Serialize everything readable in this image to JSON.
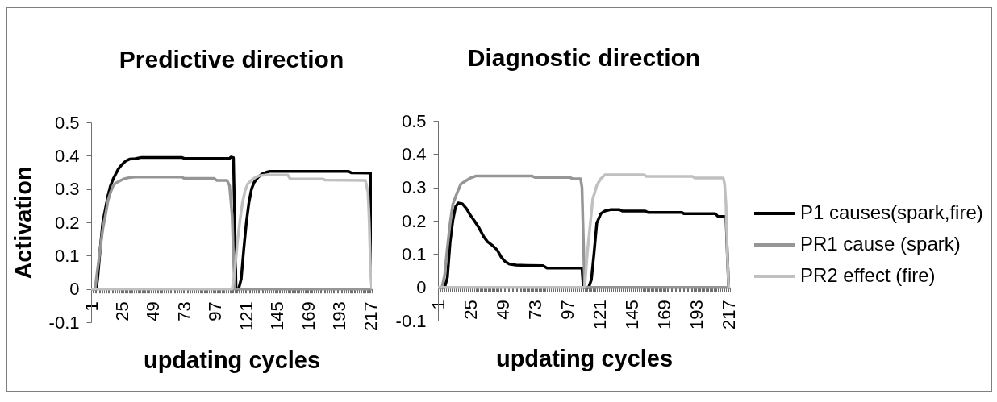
{
  "chart_data": [
    {
      "type": "line",
      "title": "Predictive direction",
      "xlabel": "updating cycles",
      "ylabel": "Activation",
      "xlim": [
        1,
        218
      ],
      "ylim": [
        -0.1,
        0.5
      ],
      "xticks": [
        1,
        {
          "value": 2,
          "label": null
        },
        {
          "value": 3,
          "label": null
        },
        {
          "value": 4,
          "label": null
        },
        {
          "value": 5,
          "label": null
        },
        {
          "value": 6,
          "label": null
        },
        {
          "value": 7,
          "label": null
        },
        {
          "value": 8,
          "label": null
        },
        {
          "value": 9,
          "label": null
        },
        {
          "value": 10,
          "label": null
        },
        {
          "value": 11,
          "label": null
        },
        {
          "value": 12,
          "label": null
        },
        {
          "value": 13,
          "label": null
        },
        {
          "value": 14,
          "label": null
        },
        {
          "value": 15,
          "label": null
        },
        {
          "value": 16,
          "label": null
        },
        {
          "value": 17,
          "label": null
        },
        {
          "value": 18,
          "label": null
        },
        {
          "value": 19,
          "label": null
        },
        {
          "value": 20,
          "label": null
        },
        {
          "value": 21,
          "label": null
        },
        {
          "value": 22,
          "label": null
        },
        {
          "value": 23,
          "label": null
        },
        {
          "value": 24,
          "label": null
        },
        25,
        {
          "value": 26,
          "label": null
        },
        {
          "value": 27,
          "label": null
        },
        {
          "value": 28,
          "label": null
        },
        {
          "value": 29,
          "label": null
        },
        {
          "value": 30,
          "label": null
        },
        {
          "value": 31,
          "label": null
        },
        {
          "value": 32,
          "label": null
        },
        {
          "value": 33,
          "label": null
        },
        {
          "value": 34,
          "label": null
        },
        {
          "value": 35,
          "label": null
        },
        {
          "value": 36,
          "label": null
        },
        {
          "value": 37,
          "label": null
        },
        {
          "value": 38,
          "label": null
        },
        {
          "value": 39,
          "label": null
        },
        {
          "value": 40,
          "label": null
        },
        {
          "value": 41,
          "label": null
        },
        {
          "value": 42,
          "label": null
        },
        {
          "value": 43,
          "label": null
        },
        {
          "value": 44,
          "label": null
        },
        {
          "value": 45,
          "label": null
        },
        {
          "value": 46,
          "label": null
        },
        {
          "value": 47,
          "label": null
        },
        {
          "value": 48,
          "label": null
        },
        49,
        {
          "value": 50,
          "label": null
        },
        {
          "value": 51,
          "label": null
        },
        {
          "value": 52,
          "label": null
        },
        {
          "value": 53,
          "label": null
        },
        {
          "value": 54,
          "label": null
        },
        {
          "value": 55,
          "label": null
        },
        {
          "value": 56,
          "label": null
        },
        {
          "value": 57,
          "label": null
        },
        {
          "value": 58,
          "label": null
        },
        {
          "value": 59,
          "label": null
        },
        {
          "value": 60,
          "label": null
        },
        {
          "value": 61,
          "label": null
        },
        {
          "value": 62,
          "label": null
        },
        {
          "value": 63,
          "label": null
        },
        {
          "value": 64,
          "label": null
        },
        {
          "value": 65,
          "label": null
        },
        {
          "value": 66,
          "label": null
        },
        {
          "value": 67,
          "label": null
        },
        {
          "value": 68,
          "label": null
        },
        {
          "value": 69,
          "label": null
        },
        {
          "value": 70,
          "label": null
        },
        {
          "value": 71,
          "label": null
        },
        {
          "value": 72,
          "label": null
        },
        73,
        {
          "value": 74,
          "label": null
        },
        {
          "value": 75,
          "label": null
        },
        {
          "value": 76,
          "label": null
        },
        {
          "value": 77,
          "label": null
        },
        {
          "value": 78,
          "label": null
        },
        {
          "value": 79,
          "label": null
        },
        {
          "value": 80,
          "label": null
        },
        {
          "value": 81,
          "label": null
        },
        {
          "value": 82,
          "label": null
        },
        {
          "value": 83,
          "label": null
        },
        {
          "value": 84,
          "label": null
        },
        {
          "value": 85,
          "label": null
        },
        {
          "value": 86,
          "label": null
        },
        {
          "value": 87,
          "label": null
        },
        {
          "value": 88,
          "label": null
        },
        {
          "value": 89,
          "label": null
        },
        {
          "value": 90,
          "label": null
        },
        {
          "value": 91,
          "label": null
        },
        {
          "value": 92,
          "label": null
        },
        {
          "value": 93,
          "label": null
        },
        {
          "value": 94,
          "label": null
        },
        {
          "value": 95,
          "label": null
        },
        {
          "value": 96,
          "label": null
        },
        97,
        {
          "value": 98,
          "label": null
        },
        {
          "value": 99,
          "label": null
        },
        {
          "value": 100,
          "label": null
        },
        {
          "value": 101,
          "label": null
        },
        {
          "value": 102,
          "label": null
        },
        {
          "value": 103,
          "label": null
        },
        {
          "value": 104,
          "label": null
        },
        {
          "value": 105,
          "label": null
        },
        {
          "value": 106,
          "label": null
        },
        {
          "value": 107,
          "label": null
        },
        {
          "value": 108,
          "label": null
        },
        {
          "value": 109,
          "label": null
        },
        {
          "value": 110,
          "label": null
        },
        {
          "value": 111,
          "label": null
        },
        {
          "value": 112,
          "label": null
        },
        {
          "value": 113,
          "label": null
        },
        {
          "value": 114,
          "label": null
        },
        {
          "value": 115,
          "label": null
        },
        {
          "value": 116,
          "label": null
        },
        {
          "value": 117,
          "label": null
        },
        {
          "value": 118,
          "label": null
        },
        {
          "value": 119,
          "label": null
        },
        {
          "value": 120,
          "label": null
        },
        121,
        {
          "value": 122,
          "label": null
        },
        {
          "value": 123,
          "label": null
        },
        {
          "value": 124,
          "label": null
        },
        {
          "value": 125,
          "label": null
        },
        {
          "value": 126,
          "label": null
        },
        {
          "value": 127,
          "label": null
        },
        {
          "value": 128,
          "label": null
        },
        {
          "value": 129,
          "label": null
        },
        {
          "value": 130,
          "label": null
        },
        {
          "value": 131,
          "label": null
        },
        {
          "value": 132,
          "label": null
        },
        {
          "value": 133,
          "label": null
        },
        {
          "value": 134,
          "label": null
        },
        {
          "value": 135,
          "label": null
        },
        {
          "value": 136,
          "label": null
        },
        {
          "value": 137,
          "label": null
        },
        {
          "value": 138,
          "label": null
        },
        {
          "value": 139,
          "label": null
        },
        {
          "value": 140,
          "label": null
        },
        {
          "value": 141,
          "label": null
        },
        {
          "value": 142,
          "label": null
        },
        {
          "value": 143,
          "label": null
        },
        {
          "value": 144,
          "label": null
        },
        145,
        {
          "value": 146,
          "label": null
        },
        {
          "value": 147,
          "label": null
        },
        {
          "value": 148,
          "label": null
        },
        {
          "value": 149,
          "label": null
        },
        {
          "value": 150,
          "label": null
        },
        {
          "value": 151,
          "label": null
        },
        {
          "value": 152,
          "label": null
        },
        {
          "value": 153,
          "label": null
        },
        {
          "value": 154,
          "label": null
        },
        {
          "value": 155,
          "label": null
        },
        {
          "value": 156,
          "label": null
        },
        {
          "value": 157,
          "label": null
        },
        {
          "value": 158,
          "label": null
        },
        {
          "value": 159,
          "label": null
        },
        {
          "value": 160,
          "label": null
        },
        {
          "value": 161,
          "label": null
        },
        {
          "value": 162,
          "label": null
        },
        {
          "value": 163,
          "label": null
        },
        {
          "value": 164,
          "label": null
        },
        {
          "value": 165,
          "label": null
        },
        {
          "value": 166,
          "label": null
        },
        {
          "value": 167,
          "label": null
        },
        {
          "value": 168,
          "label": null
        },
        169,
        {
          "value": 170,
          "label": null
        },
        {
          "value": 171,
          "label": null
        },
        {
          "value": 172,
          "label": null
        },
        {
          "value": 173,
          "label": null
        },
        {
          "value": 174,
          "label": null
        },
        {
          "value": 175,
          "label": null
        },
        {
          "value": 176,
          "label": null
        },
        {
          "value": 177,
          "label": null
        },
        {
          "value": 178,
          "label": null
        },
        {
          "value": 179,
          "label": null
        },
        {
          "value": 180,
          "label": null
        },
        {
          "value": 181,
          "label": null
        },
        {
          "value": 182,
          "label": null
        },
        {
          "value": 183,
          "label": null
        },
        {
          "value": 184,
          "label": null
        },
        {
          "value": 185,
          "label": null
        },
        {
          "value": 186,
          "label": null
        },
        {
          "value": 187,
          "label": null
        },
        {
          "value": 188,
          "label": null
        },
        {
          "value": 189,
          "label": null
        },
        {
          "value": 190,
          "label": null
        },
        {
          "value": 191,
          "label": null
        },
        {
          "value": 192,
          "label": null
        },
        193,
        {
          "value": 194,
          "label": null
        },
        {
          "value": 195,
          "label": null
        },
        {
          "value": 196,
          "label": null
        },
        {
          "value": 197,
          "label": null
        },
        {
          "value": 198,
          "label": null
        },
        {
          "value": 199,
          "label": null
        },
        {
          "value": 200,
          "label": null
        },
        {
          "value": 201,
          "label": null
        },
        {
          "value": 202,
          "label": null
        },
        {
          "value": 203,
          "label": null
        },
        {
          "value": 204,
          "label": null
        },
        {
          "value": 205,
          "label": null
        },
        {
          "value": 206,
          "label": null
        },
        {
          "value": 207,
          "label": null
        },
        {
          "value": 208,
          "label": null
        },
        {
          "value": 209,
          "label": null
        },
        {
          "value": 210,
          "label": null
        },
        {
          "value": 211,
          "label": null
        },
        {
          "value": 212,
          "label": null
        },
        {
          "value": 213,
          "label": null
        },
        {
          "value": 214,
          "label": null
        },
        {
          "value": 215,
          "label": null
        },
        {
          "value": 216,
          "label": null
        },
        217,
        {
          "value": 218,
          "label": null
        }
      ],
      "yticks": [
        -0.1,
        0,
        0.1,
        0.2,
        0.3,
        0.4,
        0.5
      ],
      "series": [
        {
          "color": "#000000",
          "x": [
            1,
            5,
            6,
            8,
            10,
            12,
            14,
            16,
            18,
            20,
            22,
            24,
            26,
            28,
            31,
            35,
            40,
            71,
            73,
            108,
            109,
            111,
            112,
            113,
            115,
            117,
            119,
            121,
            123,
            125,
            127,
            130,
            133,
            136,
            139,
            200,
            202,
            217,
            218
          ],
          "values": [
            0,
            0,
            0.03,
            0.12,
            0.2,
            0.24,
            0.28,
            0.31,
            0.33,
            0.345,
            0.36,
            0.37,
            0.378,
            0.385,
            0.39,
            0.391,
            0.395,
            0.395,
            0.392,
            0.392,
            0.396,
            0.394,
            0.2,
            0,
            0,
            0.03,
            0.12,
            0.2,
            0.26,
            0.3,
            0.32,
            0.335,
            0.345,
            0.35,
            0.353,
            0.353,
            0.349,
            0.348,
            0
          ]
        },
        {
          "color": "#969696",
          "x": [
            1,
            4,
            6,
            8,
            10,
            12,
            14,
            16,
            18,
            20,
            23,
            26,
            30,
            35,
            71,
            73,
            96,
            98,
            106,
            108,
            110,
            111,
            112,
            218
          ],
          "values": [
            0,
            0,
            0.06,
            0.12,
            0.18,
            0.22,
            0.265,
            0.29,
            0.31,
            0.318,
            0.324,
            0.33,
            0.334,
            0.336,
            0.336,
            0.332,
            0.332,
            0.326,
            0.326,
            0.31,
            0.22,
            0.1,
            0,
            0
          ]
        },
        {
          "color": "#c0c0c0",
          "x": [
            1,
            110,
            112,
            114,
            116,
            118,
            120,
            122,
            125,
            128,
            131,
            136,
            153,
            155,
            180,
            182,
            213,
            215,
            216,
            217,
            218
          ],
          "values": [
            0,
            0,
            0.05,
            0.14,
            0.205,
            0.26,
            0.295,
            0.315,
            0.327,
            0.335,
            0.34,
            0.342,
            0.342,
            0.33,
            0.33,
            0.327,
            0.326,
            0.29,
            0.2,
            0.05,
            0
          ]
        }
      ]
    },
    {
      "type": "line",
      "title": "Diagnostic direction",
      "xlabel": "updating cycles",
      "xlim": [
        1,
        218
      ],
      "ylim": [
        -0.1,
        0.5
      ],
      "legend": "right",
      "xticks": [
        1,
        {
          "value": 2,
          "label": null
        },
        {
          "value": 3,
          "label": null
        },
        {
          "value": 4,
          "label": null
        },
        {
          "value": 5,
          "label": null
        },
        {
          "value": 6,
          "label": null
        },
        {
          "value": 7,
          "label": null
        },
        {
          "value": 8,
          "label": null
        },
        {
          "value": 9,
          "label": null
        },
        {
          "value": 10,
          "label": null
        },
        {
          "value": 11,
          "label": null
        },
        {
          "value": 12,
          "label": null
        },
        {
          "value": 13,
          "label": null
        },
        {
          "value": 14,
          "label": null
        },
        {
          "value": 15,
          "label": null
        },
        {
          "value": 16,
          "label": null
        },
        {
          "value": 17,
          "label": null
        },
        {
          "value": 18,
          "label": null
        },
        {
          "value": 19,
          "label": null
        },
        {
          "value": 20,
          "label": null
        },
        {
          "value": 21,
          "label": null
        },
        {
          "value": 22,
          "label": null
        },
        {
          "value": 23,
          "label": null
        },
        {
          "value": 24,
          "label": null
        },
        25,
        {
          "value": 26,
          "label": null
        },
        {
          "value": 27,
          "label": null
        },
        {
          "value": 28,
          "label": null
        },
        {
          "value": 29,
          "label": null
        },
        {
          "value": 30,
          "label": null
        },
        {
          "value": 31,
          "label": null
        },
        {
          "value": 32,
          "label": null
        },
        {
          "value": 33,
          "label": null
        },
        {
          "value": 34,
          "label": null
        },
        {
          "value": 35,
          "label": null
        },
        {
          "value": 36,
          "label": null
        },
        {
          "value": 37,
          "label": null
        },
        {
          "value": 38,
          "label": null
        },
        {
          "value": 39,
          "label": null
        },
        {
          "value": 40,
          "label": null
        },
        {
          "value": 41,
          "label": null
        },
        {
          "value": 42,
          "label": null
        },
        {
          "value": 43,
          "label": null
        },
        {
          "value": 44,
          "label": null
        },
        {
          "value": 45,
          "label": null
        },
        {
          "value": 46,
          "label": null
        },
        {
          "value": 47,
          "label": null
        },
        {
          "value": 48,
          "label": null
        },
        49,
        {
          "value": 50,
          "label": null
        },
        {
          "value": 51,
          "label": null
        },
        {
          "value": 52,
          "label": null
        },
        {
          "value": 53,
          "label": null
        },
        {
          "value": 54,
          "label": null
        },
        {
          "value": 55,
          "label": null
        },
        {
          "value": 56,
          "label": null
        },
        {
          "value": 57,
          "label": null
        },
        {
          "value": 58,
          "label": null
        },
        {
          "value": 59,
          "label": null
        },
        {
          "value": 60,
          "label": null
        },
        {
          "value": 61,
          "label": null
        },
        {
          "value": 62,
          "label": null
        },
        {
          "value": 63,
          "label": null
        },
        {
          "value": 64,
          "label": null
        },
        {
          "value": 65,
          "label": null
        },
        {
          "value": 66,
          "label": null
        },
        {
          "value": 67,
          "label": null
        },
        {
          "value": 68,
          "label": null
        },
        {
          "value": 69,
          "label": null
        },
        {
          "value": 70,
          "label": null
        },
        {
          "value": 71,
          "label": null
        },
        {
          "value": 72,
          "label": null
        },
        73,
        {
          "value": 74,
          "label": null
        },
        {
          "value": 75,
          "label": null
        },
        {
          "value": 76,
          "label": null
        },
        {
          "value": 77,
          "label": null
        },
        {
          "value": 78,
          "label": null
        },
        {
          "value": 79,
          "label": null
        },
        {
          "value": 80,
          "label": null
        },
        {
          "value": 81,
          "label": null
        },
        {
          "value": 82,
          "label": null
        },
        {
          "value": 83,
          "label": null
        },
        {
          "value": 84,
          "label": null
        },
        {
          "value": 85,
          "label": null
        },
        {
          "value": 86,
          "label": null
        },
        {
          "value": 87,
          "label": null
        },
        {
          "value": 88,
          "label": null
        },
        {
          "value": 89,
          "label": null
        },
        {
          "value": 90,
          "label": null
        },
        {
          "value": 91,
          "label": null
        },
        {
          "value": 92,
          "label": null
        },
        {
          "value": 93,
          "label": null
        },
        {
          "value": 94,
          "label": null
        },
        {
          "value": 95,
          "label": null
        },
        {
          "value": 96,
          "label": null
        },
        97,
        {
          "value": 98,
          "label": null
        },
        {
          "value": 99,
          "label": null
        },
        {
          "value": 100,
          "label": null
        },
        {
          "value": 101,
          "label": null
        },
        {
          "value": 102,
          "label": null
        },
        {
          "value": 103,
          "label": null
        },
        {
          "value": 104,
          "label": null
        },
        {
          "value": 105,
          "label": null
        },
        {
          "value": 106,
          "label": null
        },
        {
          "value": 107,
          "label": null
        },
        {
          "value": 108,
          "label": null
        },
        {
          "value": 109,
          "label": null
        },
        {
          "value": 110,
          "label": null
        },
        {
          "value": 111,
          "label": null
        },
        {
          "value": 112,
          "label": null
        },
        {
          "value": 113,
          "label": null
        },
        {
          "value": 114,
          "label": null
        },
        {
          "value": 115,
          "label": null
        },
        {
          "value": 116,
          "label": null
        },
        {
          "value": 117,
          "label": null
        },
        {
          "value": 118,
          "label": null
        },
        {
          "value": 119,
          "label": null
        },
        {
          "value": 120,
          "label": null
        },
        121,
        {
          "value": 122,
          "label": null
        },
        {
          "value": 123,
          "label": null
        },
        {
          "value": 124,
          "label": null
        },
        {
          "value": 125,
          "label": null
        },
        {
          "value": 126,
          "label": null
        },
        {
          "value": 127,
          "label": null
        },
        {
          "value": 128,
          "label": null
        },
        {
          "value": 129,
          "label": null
        },
        {
          "value": 130,
          "label": null
        },
        {
          "value": 131,
          "label": null
        },
        {
          "value": 132,
          "label": null
        },
        {
          "value": 133,
          "label": null
        },
        {
          "value": 134,
          "label": null
        },
        {
          "value": 135,
          "label": null
        },
        {
          "value": 136,
          "label": null
        },
        {
          "value": 137,
          "label": null
        },
        {
          "value": 138,
          "label": null
        },
        {
          "value": 139,
          "label": null
        },
        {
          "value": 140,
          "label": null
        },
        {
          "value": 141,
          "label": null
        },
        {
          "value": 142,
          "label": null
        },
        {
          "value": 143,
          "label": null
        },
        {
          "value": 144,
          "label": null
        },
        145,
        {
          "value": 146,
          "label": null
        },
        {
          "value": 147,
          "label": null
        },
        {
          "value": 148,
          "label": null
        },
        {
          "value": 149,
          "label": null
        },
        {
          "value": 150,
          "label": null
        },
        {
          "value": 151,
          "label": null
        },
        {
          "value": 152,
          "label": null
        },
        {
          "value": 153,
          "label": null
        },
        {
          "value": 154,
          "label": null
        },
        {
          "value": 155,
          "label": null
        },
        {
          "value": 156,
          "label": null
        },
        {
          "value": 157,
          "label": null
        },
        {
          "value": 158,
          "label": null
        },
        {
          "value": 159,
          "label": null
        },
        {
          "value": 160,
          "label": null
        },
        {
          "value": 161,
          "label": null
        },
        {
          "value": 162,
          "label": null
        },
        {
          "value": 163,
          "label": null
        },
        {
          "value": 164,
          "label": null
        },
        {
          "value": 165,
          "label": null
        },
        {
          "value": 166,
          "label": null
        },
        {
          "value": 167,
          "label": null
        },
        {
          "value": 168,
          "label": null
        },
        169,
        {
          "value": 170,
          "label": null
        },
        {
          "value": 171,
          "label": null
        },
        {
          "value": 172,
          "label": null
        },
        {
          "value": 173,
          "label": null
        },
        {
          "value": 174,
          "label": null
        },
        {
          "value": 175,
          "label": null
        },
        {
          "value": 176,
          "label": null
        },
        {
          "value": 177,
          "label": null
        },
        {
          "value": 178,
          "label": null
        },
        {
          "value": 179,
          "label": null
        },
        {
          "value": 180,
          "label": null
        },
        {
          "value": 181,
          "label": null
        },
        {
          "value": 182,
          "label": null
        },
        {
          "value": 183,
          "label": null
        },
        {
          "value": 184,
          "label": null
        },
        {
          "value": 185,
          "label": null
        },
        {
          "value": 186,
          "label": null
        },
        {
          "value": 187,
          "label": null
        },
        {
          "value": 188,
          "label": null
        },
        {
          "value": 189,
          "label": null
        },
        {
          "value": 190,
          "label": null
        },
        {
          "value": 191,
          "label": null
        },
        {
          "value": 192,
          "label": null
        },
        193,
        {
          "value": 194,
          "label": null
        },
        {
          "value": 195,
          "label": null
        },
        {
          "value": 196,
          "label": null
        },
        {
          "value": 197,
          "label": null
        },
        {
          "value": 198,
          "label": null
        },
        {
          "value": 199,
          "label": null
        },
        {
          "value": 200,
          "label": null
        },
        {
          "value": 201,
          "label": null
        },
        {
          "value": 202,
          "label": null
        },
        {
          "value": 203,
          "label": null
        },
        {
          "value": 204,
          "label": null
        },
        {
          "value": 205,
          "label": null
        },
        {
          "value": 206,
          "label": null
        },
        {
          "value": 207,
          "label": null
        },
        {
          "value": 208,
          "label": null
        },
        {
          "value": 209,
          "label": null
        },
        {
          "value": 210,
          "label": null
        },
        {
          "value": 211,
          "label": null
        },
        {
          "value": 212,
          "label": null
        },
        {
          "value": 213,
          "label": null
        },
        {
          "value": 214,
          "label": null
        },
        {
          "value": 215,
          "label": null
        },
        {
          "value": 216,
          "label": null
        },
        217,
        {
          "value": 218,
          "label": null
        }
      ],
      "yticks": [
        -0.1,
        0,
        0.1,
        0.2,
        0.3,
        0.4,
        0.5
      ],
      "series": [
        {
          "name": "P1 causes(spark,fire)",
          "color": "#000000",
          "x": [
            1,
            6,
            8,
            10,
            12,
            14,
            16,
            19,
            22,
            25,
            28,
            31,
            35,
            38,
            42,
            45,
            48,
            51,
            54,
            59,
            67,
            79,
            82,
            108,
            109,
            113,
            115,
            117,
            119,
            122,
            125,
            129,
            136,
            138,
            155,
            157,
            182,
            184,
            207,
            209,
            215,
            216,
            217,
            218
          ],
          "values": [
            0,
            0,
            0.03,
            0.136,
            0.2,
            0.241,
            0.253,
            0.251,
            0.237,
            0.217,
            0.2,
            0.182,
            0.152,
            0.136,
            0.124,
            0.112,
            0.091,
            0.077,
            0.07,
            0.067,
            0.066,
            0.065,
            0.058,
            0.058,
            0,
            0,
            0.023,
            0.104,
            0.193,
            0.221,
            0.229,
            0.233,
            0.233,
            0.229,
            0.229,
            0.225,
            0.225,
            0.221,
            0.221,
            0.213,
            0.213,
            0.1,
            0,
            0
          ]
        },
        {
          "name": "PR1 cause (spark)",
          "color": "#969696",
          "x": [
            1,
            4,
            6,
            8,
            10,
            12,
            15,
            18,
            21,
            25,
            29,
            71,
            73,
            99,
            101,
            107,
            108,
            109,
            110,
            218
          ],
          "values": [
            0,
            0,
            0.039,
            0.12,
            0.193,
            0.249,
            0.282,
            0.31,
            0.318,
            0.328,
            0.334,
            0.334,
            0.33,
            0.33,
            0.326,
            0.326,
            0.3,
            0.15,
            0,
            0
          ]
        },
        {
          "name": "PR2 effect (fire)",
          "color": "#c0c0c0",
          "x": [
            1,
            110,
            112,
            114,
            116,
            119,
            122,
            125,
            154,
            156,
            190,
            192,
            213,
            214,
            215,
            216,
            217,
            218
          ],
          "values": [
            0,
            0,
            0.104,
            0.184,
            0.265,
            0.306,
            0.326,
            0.338,
            0.338,
            0.333,
            0.333,
            0.328,
            0.328,
            0.31,
            0.25,
            0.1,
            0,
            0
          ]
        }
      ]
    }
  ]
}
